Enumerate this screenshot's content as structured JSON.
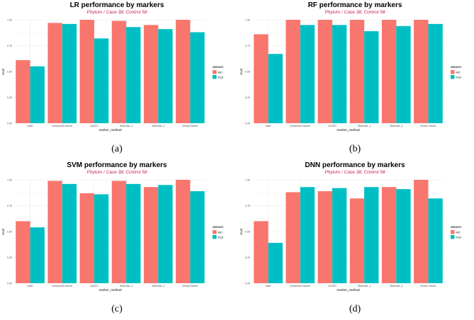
{
  "colors": {
    "series_mc": "#f8766d",
    "series_test": "#00bfc4",
    "grid": "#ebebeb",
    "subtitle": "#c2185b"
  },
  "chart_data": [
    {
      "panel_label": "(a)",
      "type": "bar",
      "title": "LR performance by markers",
      "subtitle": "Phylum / Case 38, Control 58",
      "xlabel": "marker_method",
      "ylabel": "AUC",
      "ylim": [
        0,
        1.0
      ],
      "yticks": [
        "0.00",
        "0.25",
        "0.50",
        "0.75",
        "1.00"
      ],
      "grid": true,
      "legend": {
        "title": "dataset",
        "position": "right",
        "entries": [
          "MC",
          "Test"
        ]
      },
      "categories": [
        "base",
        "Exhaustive search",
        "LASSO",
        "Stepwise_1",
        "Stepwise_2",
        "Whole marker"
      ],
      "series": [
        {
          "name": "MC",
          "values": [
            0.61,
            0.97,
            1.0,
            0.99,
            0.95,
            1.0
          ]
        },
        {
          "name": "Test",
          "values": [
            0.55,
            0.96,
            0.82,
            0.93,
            0.91,
            0.88
          ]
        }
      ]
    },
    {
      "panel_label": "(b)",
      "type": "bar",
      "title": "RF performance by markers",
      "subtitle": "Phylum / Case 38, Control 58",
      "xlabel": "marker_method",
      "ylabel": "AUC",
      "ylim": [
        0,
        1.0
      ],
      "yticks": [
        "0.00",
        "0.25",
        "0.50",
        "0.75",
        "1.00"
      ],
      "grid": true,
      "legend": {
        "title": "dataset",
        "position": "right",
        "entries": [
          "MC",
          "Test"
        ]
      },
      "categories": [
        "base",
        "Exhaustive search",
        "LASSO",
        "Stepwise_1",
        "Stepwise_2",
        "Whole marker"
      ],
      "series": [
        {
          "name": "MC",
          "values": [
            0.86,
            1.0,
            1.0,
            1.0,
            1.0,
            1.0
          ]
        },
        {
          "name": "Test",
          "values": [
            0.67,
            0.95,
            0.95,
            0.89,
            0.94,
            0.96
          ]
        }
      ]
    },
    {
      "panel_label": "(c)",
      "type": "bar",
      "title": "SVM performance by markers",
      "subtitle": "Phylum / Case 38, Control 58",
      "xlabel": "marker_method",
      "ylabel": "AUC",
      "ylim": [
        0,
        1.0
      ],
      "yticks": [
        "0.00",
        "0.25",
        "0.50",
        "0.75",
        "1.00"
      ],
      "grid": true,
      "legend": {
        "title": "dataset",
        "position": "right",
        "entries": [
          "MC",
          "Test"
        ]
      },
      "categories": [
        "base",
        "Exhaustive search",
        "LASSO",
        "Stepwise_1",
        "Stepwise_2",
        "Whole marker"
      ],
      "series": [
        {
          "name": "MC",
          "values": [
            0.6,
            0.99,
            0.87,
            0.99,
            0.93,
            1.0
          ]
        },
        {
          "name": "Test",
          "values": [
            0.54,
            0.96,
            0.86,
            0.96,
            0.95,
            0.89
          ]
        }
      ]
    },
    {
      "panel_label": "(d)",
      "type": "bar",
      "title": "DNN performance by markers",
      "subtitle": "Phylum / Case 38, Control 58",
      "xlabel": "marker_method",
      "ylabel": "AUC",
      "ylim": [
        0,
        1.0
      ],
      "yticks": [
        "0.00",
        "0.25",
        "0.50",
        "0.75",
        "1.00"
      ],
      "grid": true,
      "legend": {
        "title": "dataset",
        "position": "right",
        "entries": [
          "MC",
          "Test"
        ]
      },
      "categories": [
        "base",
        "Exhaustive search",
        "LASSO",
        "Stepwise_1",
        "Stepwise_2",
        "Whole marker"
      ],
      "series": [
        {
          "name": "MC",
          "values": [
            0.6,
            0.88,
            0.89,
            0.82,
            0.93,
            1.0
          ]
        },
        {
          "name": "Test",
          "values": [
            0.39,
            0.93,
            0.92,
            0.93,
            0.91,
            0.82
          ]
        }
      ]
    }
  ]
}
